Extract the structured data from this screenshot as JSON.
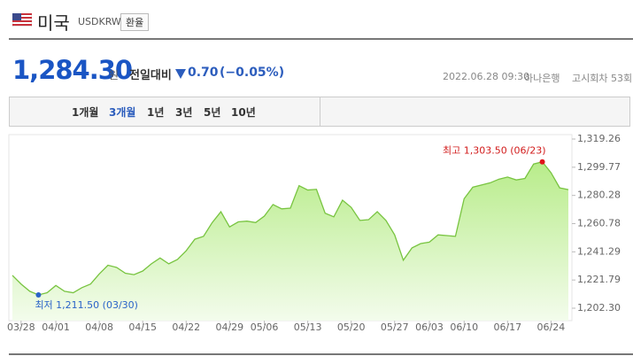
{
  "header": {
    "country": "미국",
    "code": "USDKRW",
    "button": "환율",
    "price": "1,284.30",
    "unit": "원",
    "change_label": "전일대비",
    "change": "0.70",
    "change_percent": "(−0.05%)",
    "datetime": "2022.06.28 09:30",
    "bank": "하나은행",
    "round": "고시회차 53회"
  },
  "tabs": [
    {
      "label": "1개월",
      "active": false
    },
    {
      "label": "3개월",
      "active": true
    },
    {
      "label": "1년",
      "active": false
    },
    {
      "label": "3년",
      "active": false
    },
    {
      "label": "5년",
      "active": false
    },
    {
      "label": "10년",
      "active": false
    }
  ],
  "chart_data": {
    "type": "area",
    "color": "#78c440",
    "categories": [
      null,
      "03/28",
      null,
      null,
      null,
      "04/01",
      null,
      null,
      null,
      null,
      "04/08",
      null,
      null,
      null,
      null,
      "04/15",
      null,
      null,
      null,
      null,
      "04/22",
      null,
      null,
      null,
      null,
      "04/29",
      null,
      null,
      null,
      "05/06",
      null,
      null,
      null,
      null,
      "05/13",
      null,
      null,
      null,
      null,
      "05/20",
      null,
      null,
      null,
      null,
      "05/27",
      null,
      null,
      null,
      "06/03",
      null,
      null,
      null,
      "06/10",
      null,
      null,
      null,
      null,
      "06/17",
      null,
      null,
      null,
      null,
      "06/24",
      null,
      null
    ],
    "values": [
      1225.0,
      1219.0,
      1214.0,
      1211.5,
      1213.0,
      1218.0,
      1214.0,
      1213.0,
      1216.5,
      1219.0,
      1226.0,
      1232.0,
      1230.5,
      1226.5,
      1225.5,
      1228.0,
      1233.0,
      1237.0,
      1233.0,
      1236.0,
      1242.0,
      1250.0,
      1252.0,
      1261.5,
      1269.0,
      1258.5,
      1262.0,
      1262.5,
      1261.5,
      1266.0,
      1274.0,
      1271.0,
      1271.5,
      1287.0,
      1284.0,
      1284.5,
      1268.0,
      1265.5,
      1277.0,
      1272.0,
      1263.0,
      1263.5,
      1269.0,
      1263.0,
      1253.0,
      1235.5,
      1244.0,
      1247.0,
      1248.0,
      1253.0,
      1252.5,
      1252.0,
      1278.0,
      1286.0,
      1287.5,
      1289.0,
      1291.5,
      1293.0,
      1291.0,
      1292.0,
      1302.0,
      1303.5,
      1296.0,
      1285.5,
      1284.3
    ],
    "ylim": [
      1202.3,
      1319.26
    ],
    "yticks": [
      {
        "value": 1319.26,
        "label": "1,319.26"
      },
      {
        "value": 1299.77,
        "label": "1,299.77"
      },
      {
        "value": 1280.28,
        "label": "1,280.28"
      },
      {
        "value": 1260.78,
        "label": "1,260.78"
      },
      {
        "value": 1241.29,
        "label": "1,241.29"
      },
      {
        "value": 1221.79,
        "label": "1,221.79"
      },
      {
        "value": 1202.3,
        "label": "1,202.30"
      }
    ],
    "max_index": 61,
    "min_index": 3,
    "max_label": "최고 1,303.50 (06/23)",
    "min_label": "최저 1,211.50 (03/30)"
  }
}
